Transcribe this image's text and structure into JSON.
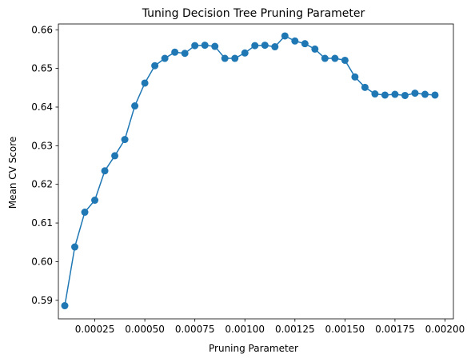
{
  "chart_data": {
    "type": "line",
    "title": "Tuning Decision Tree Pruning Parameter",
    "xlabel": "Pruning Parameter",
    "ylabel": "Mean CV Score",
    "xlim": [
      6.8e-05,
      0.002042
    ],
    "ylim": [
      0.5852,
      0.6615
    ],
    "xticks": [
      0.00025,
      0.0005,
      0.00075,
      0.001,
      0.00125,
      0.0015,
      0.00175,
      0.002
    ],
    "xtick_labels": [
      "0.00025",
      "0.00050",
      "0.00075",
      "0.00100",
      "0.00125",
      "0.00150",
      "0.00175",
      "0.00200"
    ],
    "yticks": [
      0.59,
      0.6,
      0.61,
      0.62,
      0.63,
      0.64,
      0.65,
      0.66
    ],
    "ytick_labels": [
      "0.59",
      "0.60",
      "0.61",
      "0.62",
      "0.63",
      "0.64",
      "0.65",
      "0.66"
    ],
    "grid": false,
    "legend": "none",
    "color": "#1f77b4",
    "marker": "circle",
    "series": [
      {
        "x": [
          0.0001,
          0.00015,
          0.0002,
          0.00025,
          0.0003,
          0.00035,
          0.0004,
          0.00045,
          0.0005,
          0.00055,
          0.0006,
          0.00065,
          0.0007,
          0.00075,
          0.0008,
          0.00085,
          0.0009,
          0.00095,
          0.001,
          0.00105,
          0.0011,
          0.00115,
          0.0012,
          0.00125,
          0.0013,
          0.00135,
          0.0014,
          0.00145,
          0.0015,
          0.00155,
          0.0016,
          0.00165,
          0.0017,
          0.00175,
          0.0018,
          0.00185,
          0.0019,
          0.00195
        ],
        "y": [
          0.5886,
          0.6038,
          0.6128,
          0.6159,
          0.6235,
          0.6274,
          0.6316,
          0.6403,
          0.6462,
          0.6507,
          0.6526,
          0.6542,
          0.6539,
          0.6559,
          0.656,
          0.6557,
          0.6526,
          0.6526,
          0.654,
          0.6559,
          0.656,
          0.6556,
          0.6584,
          0.6571,
          0.6564,
          0.655,
          0.6526,
          0.6526,
          0.6521,
          0.6478,
          0.6451,
          0.6434,
          0.6431,
          0.6433,
          0.643,
          0.6436,
          0.6433,
          0.6431
        ]
      }
    ]
  }
}
